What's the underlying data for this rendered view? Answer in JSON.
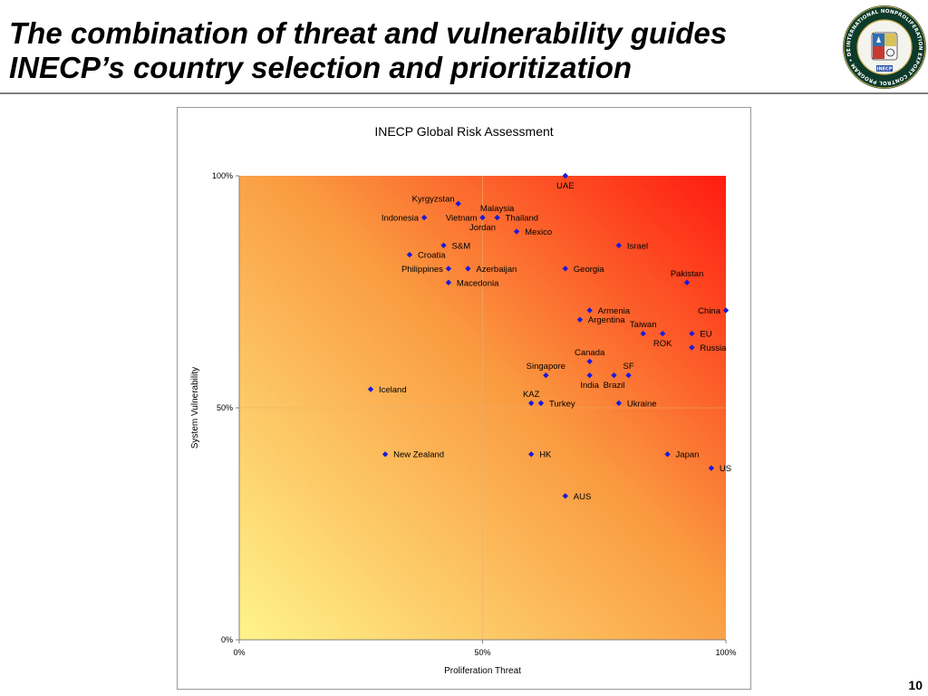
{
  "slide": {
    "title_line1": "The combination of threat and vulnerability guides",
    "title_line2": "INECP’s country selection and prioritization",
    "page_number": "10",
    "seal_text": "INTERNATIONAL NONPROLIFERATION EXPORT CONTROL PROGRAM • DEPARTMENT OF ENERGY • UNITED STATES OF AMERICA",
    "seal_badge": "INECP"
  },
  "colors": {
    "marker": "#1a1adc",
    "gradient_low": "#fff48a",
    "gradient_mid": "#fa9a40",
    "gradient_high": "#ff1a10",
    "seal_ring": "#0d3b2a",
    "seal_gold": "#c8a84a"
  },
  "chart_data": {
    "type": "scatter",
    "title": "INECP Global Risk Assessment",
    "xlabel": "Proliferation Threat",
    "ylabel": "System Vulnerability",
    "xlim": [
      0,
      100
    ],
    "ylim": [
      0,
      100
    ],
    "x_ticks": [
      "0%",
      "50%",
      "100%"
    ],
    "y_ticks": [
      "0%",
      "50%",
      "100%"
    ],
    "grid": true,
    "points": [
      {
        "label": "UAE",
        "x": 67,
        "y": 100,
        "label_pos": "below"
      },
      {
        "label": "Kyrgyzstan",
        "x": 45,
        "y": 94,
        "label_pos": "above-left"
      },
      {
        "label": "Indonesia",
        "x": 38,
        "y": 91,
        "label_pos": "left"
      },
      {
        "label": "Vietnam",
        "x": 50,
        "y": 91,
        "label_pos": "left"
      },
      {
        "label": "Jordan",
        "x": 50,
        "y": 91,
        "label_pos": "below"
      },
      {
        "label": "Malaysia",
        "x": 53,
        "y": 91,
        "label_pos": "above"
      },
      {
        "label": "Thailand",
        "x": 53,
        "y": 91,
        "label_pos": "right"
      },
      {
        "label": "Mexico",
        "x": 57,
        "y": 88,
        "label_pos": "right"
      },
      {
        "label": "S&M",
        "x": 42,
        "y": 85,
        "label_pos": "right"
      },
      {
        "label": "Israel",
        "x": 78,
        "y": 85,
        "label_pos": "right"
      },
      {
        "label": "Croatia",
        "x": 35,
        "y": 83,
        "label_pos": "right"
      },
      {
        "label": "Philippines",
        "x": 43,
        "y": 80,
        "label_pos": "left"
      },
      {
        "label": "Azerbaijan",
        "x": 47,
        "y": 80,
        "label_pos": "right"
      },
      {
        "label": "Georgia",
        "x": 67,
        "y": 80,
        "label_pos": "right"
      },
      {
        "label": "Macedonia",
        "x": 43,
        "y": 77,
        "label_pos": "right"
      },
      {
        "label": "Pakistan",
        "x": 92,
        "y": 77,
        "label_pos": "above"
      },
      {
        "label": "Armenia",
        "x": 72,
        "y": 71,
        "label_pos": "right"
      },
      {
        "label": "China",
        "x": 100,
        "y": 71,
        "label_pos": "left"
      },
      {
        "label": "Argentina",
        "x": 70,
        "y": 69,
        "label_pos": "right"
      },
      {
        "label": "Taiwan",
        "x": 83,
        "y": 66,
        "label_pos": "above"
      },
      {
        "label": "ROK",
        "x": 87,
        "y": 66,
        "label_pos": "below"
      },
      {
        "label": "EU",
        "x": 93,
        "y": 66,
        "label_pos": "right"
      },
      {
        "label": "Russia",
        "x": 93,
        "y": 63,
        "label_pos": "right"
      },
      {
        "label": "Canada",
        "x": 72,
        "y": 60,
        "label_pos": "above"
      },
      {
        "label": "Singapore",
        "x": 63,
        "y": 57,
        "label_pos": "above"
      },
      {
        "label": "India",
        "x": 72,
        "y": 57,
        "label_pos": "below"
      },
      {
        "label": "Brazil",
        "x": 77,
        "y": 57,
        "label_pos": "below"
      },
      {
        "label": "SF",
        "x": 80,
        "y": 57,
        "label_pos": "above"
      },
      {
        "label": "Iceland",
        "x": 27,
        "y": 54,
        "label_pos": "right"
      },
      {
        "label": "KAZ",
        "x": 60,
        "y": 51,
        "label_pos": "above"
      },
      {
        "label": "Turkey",
        "x": 62,
        "y": 51,
        "label_pos": "right"
      },
      {
        "label": "Ukraine",
        "x": 78,
        "y": 51,
        "label_pos": "right"
      },
      {
        "label": "New Zealand",
        "x": 30,
        "y": 40,
        "label_pos": "right"
      },
      {
        "label": "HK",
        "x": 60,
        "y": 40,
        "label_pos": "right"
      },
      {
        "label": "Japan",
        "x": 88,
        "y": 40,
        "label_pos": "right"
      },
      {
        "label": "US",
        "x": 97,
        "y": 37,
        "label_pos": "right"
      },
      {
        "label": "AUS",
        "x": 67,
        "y": 31,
        "label_pos": "right"
      }
    ]
  }
}
